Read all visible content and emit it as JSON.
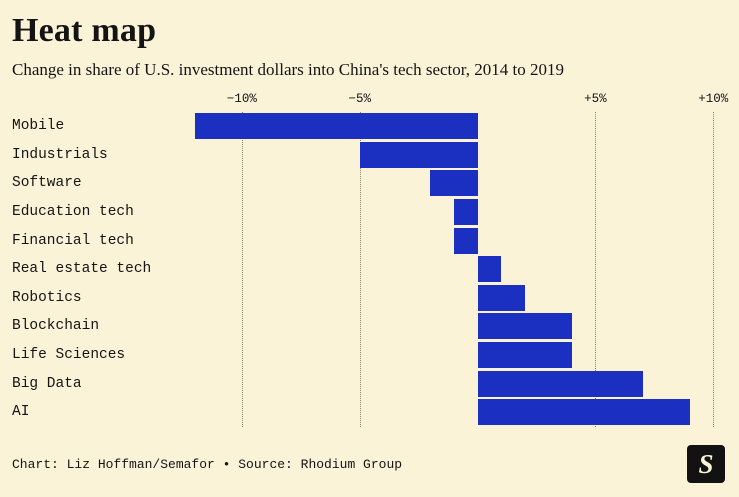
{
  "page": {
    "title": "Heat map",
    "subtitle": "Change in share of U.S. investment dollars into China's tech sector, 2014 to 2019",
    "footer": "Chart: Liz Hoffman/Semafor • Source: Rhodium Group",
    "logo_letter": "S"
  },
  "colors": {
    "background": "#FAF3D8",
    "bar": "#1B2FC1",
    "text": "#141414",
    "grid": "#8D8568",
    "logo_bg": "#121212",
    "logo_fg": "#FAF3D8"
  },
  "chart_data": {
    "type": "bar",
    "orientation": "horizontal",
    "title": "Heat map",
    "subtitle": "Change in share of U.S. investment dollars into China's tech sector, 2014 to 2019",
    "categories": [
      "Mobile",
      "Industrials",
      "Software",
      "Education tech",
      "Financial tech",
      "Real estate tech",
      "Robotics",
      "Blockchain",
      "Life Sciences",
      "Big Data",
      "AI"
    ],
    "values": [
      -12,
      -5,
      -2,
      -1,
      -1,
      1,
      2,
      4,
      4,
      7,
      9
    ],
    "unit": "%",
    "xlim": [
      -12.5,
      10.5
    ],
    "xticks": [
      {
        "value": -10,
        "label": "−10%"
      },
      {
        "value": -5,
        "label": "−5%"
      },
      {
        "value": 5,
        "label": "+5%"
      },
      {
        "value": 10,
        "label": "+10%"
      }
    ],
    "gridlines": [
      -10,
      -5,
      5,
      10
    ],
    "grid_style": "dotted",
    "legend": "none",
    "source": "Rhodium Group",
    "credit": "Liz Hoffman/Semafor"
  }
}
